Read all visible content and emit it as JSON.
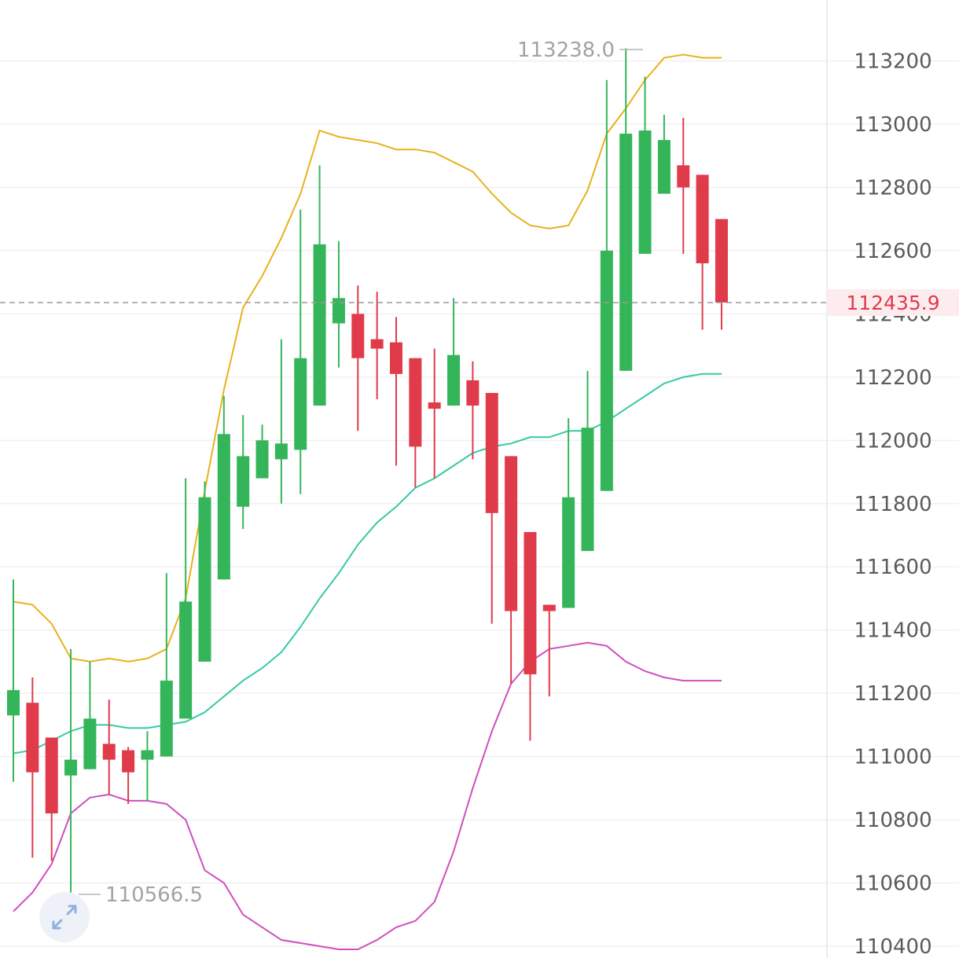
{
  "chart_data": {
    "type": "candlestick",
    "y_axis": {
      "ticks": [
        110400,
        110600,
        110800,
        111000,
        111200,
        111400,
        111600,
        111800,
        112000,
        112200,
        112400,
        112600,
        112800,
        113000,
        113200
      ],
      "side": "right",
      "grid": true
    },
    "current_price": {
      "value": 112435.9,
      "label": "112435.9",
      "color": "#e03b4b"
    },
    "max_label": {
      "value": 113238.0,
      "label": "113238.0"
    },
    "min_label": {
      "value": 110566.5,
      "label": "110566.5"
    },
    "colors": {
      "up": "#35b55a",
      "down": "#e03b4b",
      "upper_band": "#e8b21c",
      "middle_band": "#36c9a6",
      "lower_band": "#cf4fbf"
    },
    "candles": [
      {
        "o": 111130,
        "h": 111560,
        "l": 110920,
        "c": 111210
      },
      {
        "o": 111170,
        "h": 111250,
        "l": 110680,
        "c": 110950
      },
      {
        "o": 111060,
        "h": 111060,
        "l": 110670,
        "c": 110820
      },
      {
        "o": 110940,
        "h": 111340,
        "l": 110570,
        "c": 110990
      },
      {
        "o": 110960,
        "h": 111300,
        "l": 110960,
        "c": 111120
      },
      {
        "o": 111040,
        "h": 111180,
        "l": 110880,
        "c": 110990
      },
      {
        "o": 111020,
        "h": 111030,
        "l": 110850,
        "c": 110950
      },
      {
        "o": 110990,
        "h": 111080,
        "l": 110860,
        "c": 111020
      },
      {
        "o": 111000,
        "h": 111580,
        "l": 111000,
        "c": 111240
      },
      {
        "o": 111120,
        "h": 111880,
        "l": 111120,
        "c": 111490
      },
      {
        "o": 111300,
        "h": 111870,
        "l": 111300,
        "c": 111820
      },
      {
        "o": 111560,
        "h": 112140,
        "l": 111560,
        "c": 112020
      },
      {
        "o": 111790,
        "h": 112080,
        "l": 111720,
        "c": 111950
      },
      {
        "o": 111880,
        "h": 112050,
        "l": 111880,
        "c": 112000
      },
      {
        "o": 111940,
        "h": 112320,
        "l": 111800,
        "c": 111990
      },
      {
        "o": 111970,
        "h": 112730,
        "l": 111830,
        "c": 112260
      },
      {
        "o": 112110,
        "h": 112870,
        "l": 112110,
        "c": 112620
      },
      {
        "o": 112370,
        "h": 112630,
        "l": 112230,
        "c": 112450
      },
      {
        "o": 112400,
        "h": 112490,
        "l": 112030,
        "c": 112260
      },
      {
        "o": 112320,
        "h": 112470,
        "l": 112130,
        "c": 112290
      },
      {
        "o": 112310,
        "h": 112390,
        "l": 111920,
        "c": 112210
      },
      {
        "o": 112260,
        "h": 112260,
        "l": 111850,
        "c": 111980
      },
      {
        "o": 112120,
        "h": 112290,
        "l": 111880,
        "c": 112100
      },
      {
        "o": 112110,
        "h": 112450,
        "l": 112110,
        "c": 112270
      },
      {
        "o": 112190,
        "h": 112250,
        "l": 111940,
        "c": 112110
      },
      {
        "o": 112150,
        "h": 112150,
        "l": 111420,
        "c": 111770
      },
      {
        "o": 111950,
        "h": 111950,
        "l": 111230,
        "c": 111460
      },
      {
        "o": 111710,
        "h": 111710,
        "l": 111050,
        "c": 111260
      },
      {
        "o": 111480,
        "h": 111480,
        "l": 111190,
        "c": 111460
      },
      {
        "o": 111470,
        "h": 112070,
        "l": 111470,
        "c": 111820
      },
      {
        "o": 111650,
        "h": 112220,
        "l": 111650,
        "c": 112040
      },
      {
        "o": 111840,
        "h": 113140,
        "l": 111840,
        "c": 112600
      },
      {
        "o": 112220,
        "h": 113240,
        "l": 112220,
        "c": 112970
      },
      {
        "o": 112590,
        "h": 113150,
        "l": 112590,
        "c": 112980
      },
      {
        "o": 112780,
        "h": 113030,
        "l": 112780,
        "c": 112950
      },
      {
        "o": 112870,
        "h": 113020,
        "l": 112590,
        "c": 112800
      },
      {
        "o": 112840,
        "h": 112840,
        "l": 112350,
        "c": 112560
      },
      {
        "o": 112700,
        "h": 112700,
        "l": 112350,
        "c": 112436
      }
    ],
    "upper_band": [
      111490,
      111480,
      111420,
      111310,
      111300,
      111310,
      111300,
      111310,
      111340,
      111500,
      111840,
      112160,
      112420,
      112520,
      112640,
      112780,
      112980,
      112960,
      112950,
      112940,
      112920,
      112920,
      112910,
      112880,
      112850,
      112780,
      112720,
      112680,
      112670,
      112680,
      112790,
      112970,
      113050,
      113140,
      113210,
      113220,
      113210,
      113210
    ],
    "middle_band": [
      111010,
      111020,
      111050,
      111080,
      111100,
      111100,
      111090,
      111090,
      111100,
      111110,
      111140,
      111190,
      111240,
      111280,
      111330,
      111410,
      111500,
      111580,
      111670,
      111740,
      111790,
      111850,
      111880,
      111920,
      111960,
      111980,
      111990,
      112010,
      112010,
      112030,
      112030,
      112060,
      112100,
      112140,
      112180,
      112200,
      112210,
      112210
    ],
    "lower_band": [
      110510,
      110570,
      110660,
      110820,
      110870,
      110880,
      110860,
      110860,
      110850,
      110800,
      110640,
      110600,
      110500,
      110460,
      110420,
      110410,
      110400,
      110390,
      110390,
      110420,
      110460,
      110480,
      110540,
      110700,
      110900,
      111080,
      111230,
      111300,
      111340,
      111350,
      111360,
      111350,
      111300,
      111270,
      111250,
      111240,
      111240,
      111240
    ]
  }
}
